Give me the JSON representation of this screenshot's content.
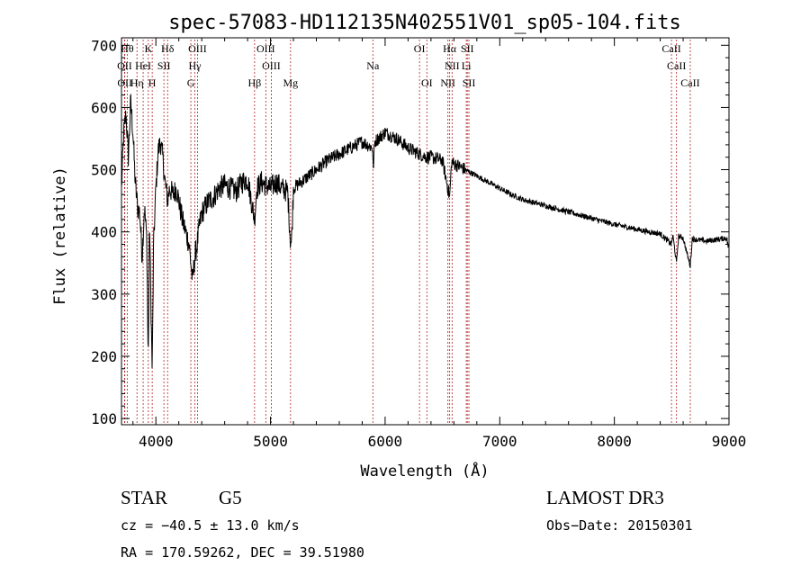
{
  "chart_data": {
    "type": "line",
    "title": "spec-57083-HD112135N402551V01_sp05-104.fits",
    "xlabel": "Wavelength (Å)",
    "ylabel": "Flux (relative)",
    "xlim": [
      3700,
      9000
    ],
    "ylim": [
      90,
      712
    ],
    "x_ticks": [
      4000,
      5000,
      6000,
      7000,
      8000,
      9000
    ],
    "y_ticks": [
      100,
      200,
      300,
      400,
      500,
      600,
      700
    ],
    "spectrum_anchors": [
      [
        3700,
        470
      ],
      [
        3720,
        560
      ],
      [
        3740,
        590
      ],
      [
        3760,
        520
      ],
      [
        3780,
        610
      ],
      [
        3800,
        560
      ],
      [
        3820,
        480
      ],
      [
        3840,
        440
      ],
      [
        3860,
        430
      ],
      [
        3880,
        360
      ],
      [
        3900,
        440
      ],
      [
        3920,
        390
      ],
      [
        3933,
        190
      ],
      [
        3945,
        420
      ],
      [
        3955,
        300
      ],
      [
        3968,
        175
      ],
      [
        3980,
        380
      ],
      [
        4000,
        470
      ],
      [
        4020,
        530
      ],
      [
        4040,
        545
      ],
      [
        4060,
        520
      ],
      [
        4080,
        480
      ],
      [
        4102,
        450
      ],
      [
        4120,
        470
      ],
      [
        4150,
        460
      ],
      [
        4180,
        470
      ],
      [
        4200,
        450
      ],
      [
        4230,
        420
      ],
      [
        4260,
        400
      ],
      [
        4290,
        380
      ],
      [
        4310,
        340
      ],
      [
        4320,
        320
      ],
      [
        4340,
        360
      ],
      [
        4360,
        380
      ],
      [
        4380,
        410
      ],
      [
        4400,
        430
      ],
      [
        4430,
        440
      ],
      [
        4460,
        450
      ],
      [
        4500,
        455
      ],
      [
        4550,
        470
      ],
      [
        4600,
        475
      ],
      [
        4650,
        470
      ],
      [
        4700,
        465
      ],
      [
        4750,
        480
      ],
      [
        4800,
        485
      ],
      [
        4861,
        420
      ],
      [
        4880,
        470
      ],
      [
        4920,
        480
      ],
      [
        4960,
        475
      ],
      [
        5000,
        470
      ],
      [
        5050,
        480
      ],
      [
        5100,
        470
      ],
      [
        5150,
        465
      ],
      [
        5172,
        390
      ],
      [
        5183,
        380
      ],
      [
        5200,
        470
      ],
      [
        5250,
        478
      ],
      [
        5300,
        485
      ],
      [
        5400,
        500
      ],
      [
        5500,
        515
      ],
      [
        5600,
        525
      ],
      [
        5700,
        535
      ],
      [
        5800,
        545
      ],
      [
        5890,
        535
      ],
      [
        5896,
        500
      ],
      [
        5910,
        545
      ],
      [
        6000,
        560
      ],
      [
        6050,
        555
      ],
      [
        6100,
        550
      ],
      [
        6200,
        535
      ],
      [
        6300,
        525
      ],
      [
        6364,
        520
      ],
      [
        6400,
        520
      ],
      [
        6500,
        515
      ],
      [
        6563,
        455
      ],
      [
        6580,
        512
      ],
      [
        6650,
        505
      ],
      [
        6700,
        500
      ],
      [
        6800,
        490
      ],
      [
        6900,
        480
      ],
      [
        7000,
        470
      ],
      [
        7100,
        460
      ],
      [
        7200,
        452
      ],
      [
        7300,
        447
      ],
      [
        7400,
        442
      ],
      [
        7500,
        437
      ],
      [
        7600,
        432
      ],
      [
        7700,
        427
      ],
      [
        7800,
        422
      ],
      [
        7900,
        417
      ],
      [
        8000,
        412
      ],
      [
        8100,
        408
      ],
      [
        8200,
        404
      ],
      [
        8300,
        400
      ],
      [
        8400,
        397
      ],
      [
        8498,
        380
      ],
      [
        8510,
        395
      ],
      [
        8542,
        350
      ],
      [
        8560,
        393
      ],
      [
        8600,
        390
      ],
      [
        8662,
        345
      ],
      [
        8680,
        390
      ],
      [
        8700,
        388
      ],
      [
        8800,
        385
      ],
      [
        8900,
        388
      ],
      [
        8980,
        390
      ],
      [
        9000,
        370
      ]
    ],
    "spectral_lines": [
      {
        "label": "Hθ",
        "x": 3750,
        "row": 1
      },
      {
        "label": "K",
        "x": 3934,
        "row": 1
      },
      {
        "label": "Hδ",
        "x": 4102,
        "row": 1
      },
      {
        "label": "OIII",
        "x": 4363,
        "row": 1
      },
      {
        "label": "OIII",
        "x": 4959,
        "row": 1
      },
      {
        "label": "OI",
        "x": 6300,
        "row": 1
      },
      {
        "label": "Hα",
        "x": 6563,
        "row": 1
      },
      {
        "label": "SII",
        "x": 6717,
        "row": 1
      },
      {
        "label": "CaII",
        "x": 8498,
        "row": 1
      },
      {
        "label": "OII",
        "x": 3727,
        "row": 2
      },
      {
        "label": "HeI",
        "x": 3889,
        "row": 2
      },
      {
        "label": "SII",
        "x": 4070,
        "row": 2
      },
      {
        "label": "Hγ",
        "x": 4340,
        "row": 2
      },
      {
        "label": "OIII",
        "x": 5007,
        "row": 2
      },
      {
        "label": "NII",
        "x": 6584,
        "row": 2
      },
      {
        "label": "Li",
        "x": 6708,
        "row": 2
      },
      {
        "label": "CaII",
        "x": 8542,
        "row": 2
      },
      {
        "label": "OII",
        "x": 3729,
        "row": 3
      },
      {
        "label": "Hη",
        "x": 3835,
        "row": 3
      },
      {
        "label": "H",
        "x": 3968,
        "row": 3
      },
      {
        "label": "G",
        "x": 4305,
        "row": 3
      },
      {
        "label": "Hβ",
        "x": 4861,
        "row": 3
      },
      {
        "label": "Mg",
        "x": 5175,
        "row": 3
      },
      {
        "label": "Na",
        "x": 5893,
        "row": 2
      },
      {
        "label": "OI",
        "x": 6364,
        "row": 3
      },
      {
        "label": "NII",
        "x": 6548,
        "row": 3
      },
      {
        "label": "SII",
        "x": 6731,
        "row": 3
      },
      {
        "label": "CaII",
        "x": 8662,
        "row": 3
      }
    ]
  },
  "info": {
    "object_class": "STAR",
    "subclass": "G5",
    "survey": "LAMOST DR3",
    "cz": "cz = −40.5 ± 13.0 km/s",
    "obs_date": "Obs−Date: 20150301",
    "coords": "RA = 170.59262, DEC =  39.51980"
  },
  "colors": {
    "axis": "#000000",
    "spectrum": "#000000",
    "line_marker": "#b22222"
  }
}
